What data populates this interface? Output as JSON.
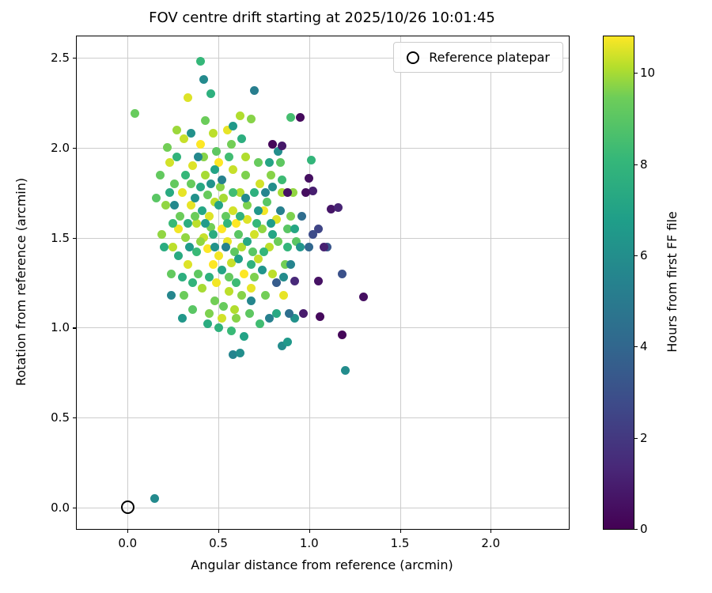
{
  "colors": {
    "grid": "#cccccc",
    "axes_edge": "#000000",
    "background": "#ffffff",
    "viridis_stops": [
      [
        0.0,
        68,
        1,
        84
      ],
      [
        0.125,
        72,
        40,
        120
      ],
      [
        0.25,
        62,
        74,
        137
      ],
      [
        0.375,
        49,
        104,
        142
      ],
      [
        0.5,
        38,
        130,
        142
      ],
      [
        0.625,
        31,
        158,
        137
      ],
      [
        0.75,
        53,
        183,
        121
      ],
      [
        0.875,
        109,
        205,
        89
      ],
      [
        0.9375,
        180,
        222,
        44
      ],
      [
        1.0,
        253,
        231,
        37
      ]
    ]
  },
  "chart_data": {
    "type": "scatter",
    "title": "FOV centre drift starting at 2025/10/26 10:01:45",
    "xlabel": "Angular distance from reference (arcmin)",
    "ylabel": "Rotation from reference (arcmin)",
    "xlim": [
      -0.28,
      2.43
    ],
    "ylim": [
      -0.12,
      2.62
    ],
    "xticks": [
      0.0,
      0.5,
      1.0,
      1.5,
      2.0
    ],
    "xtick_labels": [
      "0.0",
      "0.5",
      "1.0",
      "1.5",
      "2.0"
    ],
    "yticks": [
      0.0,
      0.5,
      1.0,
      1.5,
      2.0,
      2.5
    ],
    "ytick_labels": [
      "0.0",
      "0.5",
      "1.0",
      "1.5",
      "2.0",
      "2.5"
    ],
    "grid": true,
    "legend": {
      "position": "upper right",
      "entries": [
        {
          "label": "Reference platepar",
          "marker": "open-circle"
        }
      ]
    },
    "colorbar": {
      "label": "Hours from first FF file",
      "colormap": "viridis",
      "vmin": 0,
      "vmax": 10.8,
      "ticks": [
        0,
        2,
        4,
        6,
        8,
        10
      ],
      "tick_labels": [
        "0",
        "2",
        "4",
        "6",
        "8",
        "10"
      ]
    },
    "reference_point": {
      "x": 0.0,
      "y": 0.0,
      "label": "Reference platepar"
    },
    "points_format": [
      "angular_distance_arcmin",
      "rotation_arcmin",
      "hours_from_first_FF_file"
    ],
    "points": [
      [
        0.45,
        1.62,
        10.5
      ],
      [
        0.52,
        1.55,
        10.8
      ],
      [
        0.48,
        1.7,
        10.2
      ],
      [
        0.55,
        1.48,
        10.6
      ],
      [
        0.6,
        1.58,
        10.8
      ],
      [
        0.42,
        1.5,
        10.3
      ],
      [
        0.5,
        1.4,
        10.7
      ],
      [
        0.58,
        1.65,
        10.4
      ],
      [
        0.63,
        1.45,
        10.1
      ],
      [
        0.47,
        1.35,
        10.8
      ],
      [
        0.53,
        1.72,
        10.0
      ],
      [
        0.66,
        1.6,
        10.5
      ],
      [
        0.38,
        1.58,
        10.2
      ],
      [
        0.44,
        1.44,
        10.8
      ],
      [
        0.57,
        1.36,
        10.3
      ],
      [
        0.35,
        1.68,
        10.6
      ],
      [
        0.62,
        1.75,
        10.1
      ],
      [
        0.7,
        1.52,
        10.4
      ],
      [
        0.49,
        1.25,
        10.7
      ],
      [
        0.56,
        1.2,
        10.2
      ],
      [
        0.64,
        1.3,
        10.8
      ],
      [
        0.41,
        1.22,
        10.0
      ],
      [
        0.33,
        1.35,
        10.5
      ],
      [
        0.72,
        1.38,
        10.3
      ],
      [
        0.68,
        1.22,
        10.6
      ],
      [
        0.59,
        1.1,
        10.1
      ],
      [
        0.52,
        1.05,
        10.4
      ],
      [
        0.75,
        1.65,
        10.7
      ],
      [
        0.78,
        1.45,
        10.2
      ],
      [
        0.36,
        1.9,
        10.5
      ],
      [
        0.43,
        1.85,
        10.0
      ],
      [
        0.5,
        1.92,
        10.8
      ],
      [
        0.58,
        1.88,
        10.3
      ],
      [
        0.3,
        1.75,
        10.6
      ],
      [
        0.65,
        1.95,
        10.1
      ],
      [
        0.73,
        1.8,
        10.4
      ],
      [
        0.28,
        1.55,
        10.7
      ],
      [
        0.25,
        1.45,
        10.2
      ],
      [
        0.82,
        1.6,
        10.5
      ],
      [
        0.85,
        1.75,
        10.0
      ],
      [
        0.31,
        2.05,
        10.3
      ],
      [
        0.55,
        2.1,
        10.6
      ],
      [
        0.62,
        2.18,
        10.1
      ],
      [
        0.4,
        2.02,
        10.8
      ],
      [
        0.47,
        2.08,
        10.2
      ],
      [
        0.33,
        2.28,
        10.5
      ],
      [
        0.23,
        1.92,
        10.4
      ],
      [
        0.27,
        2.1,
        9.9
      ],
      [
        0.8,
        1.3,
        10.2
      ],
      [
        0.86,
        1.18,
        10.6
      ],
      [
        0.46,
        1.56,
        9.5
      ],
      [
        0.54,
        1.62,
        9.2
      ],
      [
        0.4,
        1.48,
        9.8
      ],
      [
        0.61,
        1.52,
        9.0
      ],
      [
        0.37,
        1.62,
        9.4
      ],
      [
        0.51,
        1.78,
        9.7
      ],
      [
        0.59,
        1.42,
        9.1
      ],
      [
        0.66,
        1.68,
        9.6
      ],
      [
        0.44,
        1.74,
        9.3
      ],
      [
        0.32,
        1.5,
        9.8
      ],
      [
        0.69,
        1.42,
        9.0
      ],
      [
        0.48,
        1.15,
        9.5
      ],
      [
        0.56,
        1.28,
        9.2
      ],
      [
        0.63,
        1.18,
        9.7
      ],
      [
        0.39,
        1.3,
        9.1
      ],
      [
        0.29,
        1.62,
        9.4
      ],
      [
        0.74,
        1.55,
        9.8
      ],
      [
        0.77,
        1.7,
        9.0
      ],
      [
        0.7,
        1.28,
        9.6
      ],
      [
        0.35,
        1.8,
        9.3
      ],
      [
        0.42,
        1.95,
        9.7
      ],
      [
        0.49,
        1.98,
        9.1
      ],
      [
        0.57,
        2.02,
        9.5
      ],
      [
        0.26,
        1.8,
        9.2
      ],
      [
        0.21,
        1.68,
        9.8
      ],
      [
        0.83,
        1.48,
        9.4
      ],
      [
        0.88,
        1.55,
        9.0
      ],
      [
        0.45,
        1.08,
        9.6
      ],
      [
        0.53,
        1.12,
        9.3
      ],
      [
        0.6,
        1.05,
        9.7
      ],
      [
        0.67,
        1.08,
        9.1
      ],
      [
        0.76,
        1.18,
        9.5
      ],
      [
        0.24,
        1.3,
        9.2
      ],
      [
        0.19,
        1.52,
        9.8
      ],
      [
        0.31,
        1.18,
        9.4
      ],
      [
        0.36,
        1.1,
        9.0
      ],
      [
        0.65,
        1.85,
        9.6
      ],
      [
        0.72,
        1.92,
        9.3
      ],
      [
        0.79,
        1.85,
        9.7
      ],
      [
        0.84,
        1.92,
        9.1
      ],
      [
        0.22,
        2.0,
        9.5
      ],
      [
        0.18,
        1.85,
        9.2
      ],
      [
        0.9,
        1.62,
        9.6
      ],
      [
        0.93,
        1.48,
        9.0
      ],
      [
        0.43,
        2.15,
        9.4
      ],
      [
        0.68,
        2.16,
        9.7
      ],
      [
        0.04,
        2.19,
        9.3
      ],
      [
        0.16,
        1.72,
        9.0
      ],
      [
        0.87,
        1.35,
        9.5
      ],
      [
        0.91,
        1.75,
        9.8
      ],
      [
        0.47,
        1.52,
        7.5
      ],
      [
        0.55,
        1.58,
        8.0
      ],
      [
        0.41,
        1.65,
        7.2
      ],
      [
        0.62,
        1.62,
        7.8
      ],
      [
        0.38,
        1.42,
        8.2
      ],
      [
        0.5,
        1.68,
        7.0
      ],
      [
        0.58,
        1.75,
        8.4
      ],
      [
        0.33,
        1.58,
        7.6
      ],
      [
        0.66,
        1.48,
        7.3
      ],
      [
        0.71,
        1.58,
        8.1
      ],
      [
        0.45,
        1.28,
        7.7
      ],
      [
        0.52,
        1.32,
        7.1
      ],
      [
        0.6,
        1.25,
        8.3
      ],
      [
        0.36,
        1.25,
        7.9
      ],
      [
        0.28,
        1.4,
        7.4
      ],
      [
        0.75,
        1.42,
        8.0
      ],
      [
        0.8,
        1.52,
        7.2
      ],
      [
        0.68,
        1.35,
        7.8
      ],
      [
        0.25,
        1.58,
        8.2
      ],
      [
        0.2,
        1.45,
        7.5
      ],
      [
        0.48,
        1.88,
        7.0
      ],
      [
        0.56,
        1.95,
        8.4
      ],
      [
        0.63,
        2.05,
        7.6
      ],
      [
        0.4,
        1.78,
        7.3
      ],
      [
        0.32,
        1.85,
        8.1
      ],
      [
        0.7,
        1.75,
        7.7
      ],
      [
        0.78,
        1.92,
        7.1
      ],
      [
        0.85,
        1.82,
        8.3
      ],
      [
        0.27,
        1.95,
        7.9
      ],
      [
        0.23,
        1.75,
        7.4
      ],
      [
        0.88,
        1.45,
        8.0
      ],
      [
        0.92,
        1.55,
        7.2
      ],
      [
        0.5,
        1.0,
        7.8
      ],
      [
        0.57,
        0.98,
        8.2
      ],
      [
        0.44,
        1.02,
        7.5
      ],
      [
        0.64,
        0.95,
        7.0
      ],
      [
        0.73,
        1.02,
        8.4
      ],
      [
        0.3,
        1.28,
        7.6
      ],
      [
        0.82,
        1.08,
        7.3
      ],
      [
        0.4,
        2.48,
        8.1
      ],
      [
        0.46,
        2.3,
        7.7
      ],
      [
        1.01,
        1.93,
        8.0
      ],
      [
        0.9,
        2.17,
        8.5
      ],
      [
        0.42,
        2.38,
        5.8
      ],
      [
        0.7,
        2.32,
        5.2
      ],
      [
        0.58,
        2.12,
        6.5
      ],
      [
        0.76,
        1.75,
        5.5
      ],
      [
        0.8,
        1.78,
        6.0
      ],
      [
        0.84,
        1.65,
        5.3
      ],
      [
        0.79,
        1.58,
        6.7
      ],
      [
        0.86,
        1.28,
        5.9
      ],
      [
        0.74,
        1.32,
        6.3
      ],
      [
        0.68,
        1.15,
        5.6
      ],
      [
        0.61,
        1.38,
        6.8
      ],
      [
        0.54,
        1.45,
        5.4
      ],
      [
        0.37,
        1.72,
        6.1
      ],
      [
        0.43,
        1.58,
        6.6
      ],
      [
        0.26,
        1.68,
        5.7
      ],
      [
        0.48,
        1.45,
        6.2
      ],
      [
        0.65,
        1.72,
        5.8
      ],
      [
        0.72,
        1.65,
        6.4
      ],
      [
        0.58,
        0.85,
        5.5
      ],
      [
        0.62,
        0.86,
        6.0
      ],
      [
        0.85,
        0.9,
        5.9
      ],
      [
        0.88,
        0.92,
        6.5
      ],
      [
        0.78,
        1.05,
        5.3
      ],
      [
        0.92,
        1.05,
        6.1
      ],
      [
        1.2,
        0.76,
        5.9
      ],
      [
        0.15,
        0.05,
        5.8
      ],
      [
        0.34,
        1.45,
        6.6
      ],
      [
        0.52,
        1.82,
        5.4
      ],
      [
        0.46,
        1.8,
        6.2
      ],
      [
        0.39,
        1.95,
        5.7
      ],
      [
        0.95,
        1.45,
        6.3
      ],
      [
        0.9,
        1.35,
        5.5
      ],
      [
        0.83,
        1.98,
        6.0
      ],
      [
        0.3,
        1.05,
        6.4
      ],
      [
        0.24,
        1.18,
        5.6
      ],
      [
        0.35,
        2.08,
        6.1
      ],
      [
        1.18,
        1.3,
        3.0
      ],
      [
        0.82,
        1.25,
        3.5
      ],
      [
        1.0,
        1.45,
        4.0
      ],
      [
        1.05,
        1.55,
        2.5
      ],
      [
        0.96,
        1.62,
        4.3
      ],
      [
        1.1,
        1.45,
        3.2
      ],
      [
        0.89,
        1.08,
        4.4
      ],
      [
        1.02,
        1.52,
        2.8
      ],
      [
        0.95,
        2.17,
        0.3
      ],
      [
        0.85,
        2.01,
        0.8
      ],
      [
        0.8,
        2.02,
        0.2
      ],
      [
        1.0,
        1.83,
        0.5
      ],
      [
        1.02,
        1.76,
        1.0
      ],
      [
        0.98,
        1.75,
        0.4
      ],
      [
        1.12,
        1.66,
        0.7
      ],
      [
        1.16,
        1.67,
        1.2
      ],
      [
        1.05,
        1.26,
        0.6
      ],
      [
        0.92,
        1.26,
        1.4
      ],
      [
        1.18,
        0.96,
        0.2
      ],
      [
        1.3,
        1.17,
        0.5
      ],
      [
        0.97,
        1.08,
        0.9
      ],
      [
        1.06,
        1.06,
        0.3
      ],
      [
        1.08,
        1.45,
        1.1
      ],
      [
        0.88,
        1.75,
        0.6
      ]
    ]
  }
}
